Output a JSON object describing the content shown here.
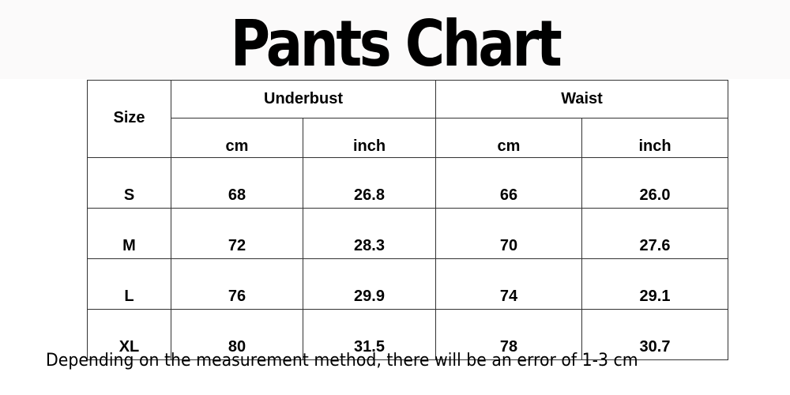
{
  "title": "Pants Chart",
  "table": {
    "size_label": "Size",
    "groups": [
      "Underbust",
      "Waist"
    ],
    "units": [
      "cm",
      "inch",
      "cm",
      "inch"
    ],
    "rows": [
      {
        "size": "S",
        "values": [
          "68",
          "26.8",
          "66",
          "26.0"
        ]
      },
      {
        "size": "M",
        "values": [
          "72",
          "28.3",
          "70",
          "27.6"
        ]
      },
      {
        "size": "L",
        "values": [
          "76",
          "29.9",
          "74",
          "29.1"
        ]
      },
      {
        "size": "XL",
        "values": [
          "80",
          "31.5",
          "78",
          "30.7"
        ]
      }
    ]
  },
  "footnote": "Depending on the measurement method, there will be an error of 1-3 cm"
}
